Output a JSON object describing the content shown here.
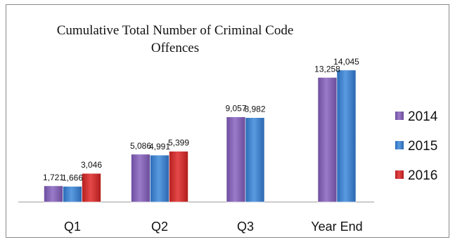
{
  "chart_data": {
    "type": "bar",
    "title": "Cumulative Total Number of Criminal Code Offences",
    "title_lines": [
      "Cumulative Total Number of Criminal Code",
      "Offences"
    ],
    "xlabel": "",
    "ylabel": "",
    "categories": [
      "Q1",
      "Q2",
      "Q3",
      "Year End"
    ],
    "series": [
      {
        "name": "2014",
        "color": "#8e6bbf",
        "values": [
          1721,
          5086,
          9057,
          13258
        ]
      },
      {
        "name": "2015",
        "color": "#3f86d6",
        "values": [
          1666,
          4991,
          8982,
          14045
        ]
      },
      {
        "name": "2016",
        "color": "#d83535",
        "values": [
          3046,
          5399,
          null,
          null
        ]
      }
    ],
    "data_labels": [
      [
        "1,721",
        "5,086",
        "9,057",
        "13,258"
      ],
      [
        "1,666",
        "4,991",
        "8,982",
        "14,045"
      ],
      [
        "3,046",
        "5,399",
        "",
        ""
      ]
    ],
    "ylim": [
      0,
      16500
    ],
    "grid": false,
    "legend_position": "right"
  }
}
